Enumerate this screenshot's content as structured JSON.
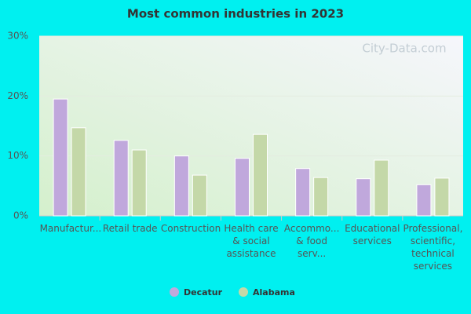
{
  "chart_data": {
    "type": "bar",
    "title": "Most common industries in 2023",
    "watermark": "City-Data.com",
    "categories": [
      "Manufactur...",
      "Retail trade",
      "Construction",
      "Health care & social assistance",
      "Accommo... & food serv...",
      "Educational services",
      "Professional, scientific, technical services"
    ],
    "series": [
      {
        "name": "Decatur",
        "color": "#c0a8dc",
        "values": [
          19.5,
          12.6,
          10.0,
          9.6,
          7.9,
          6.2,
          5.2
        ]
      },
      {
        "name": "Alabama",
        "color": "#c4d8a8",
        "values": [
          14.7,
          11.0,
          6.8,
          13.6,
          6.4,
          9.3,
          6.3
        ]
      }
    ],
    "ylim": [
      0,
      30
    ],
    "yticks": [
      {
        "value": 0,
        "label": "0%"
      },
      {
        "value": 10,
        "label": "10%"
      },
      {
        "value": 20,
        "label": "20%"
      },
      {
        "value": 30,
        "label": "30%"
      }
    ],
    "grid": true
  }
}
